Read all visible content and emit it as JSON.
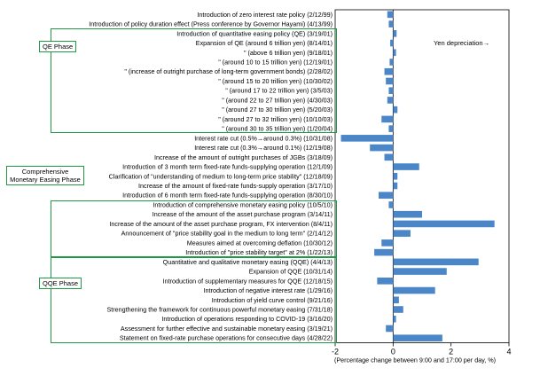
{
  "chart_data": {
    "type": "bar",
    "orientation": "horizontal",
    "categories": [
      "Introduction of zero interest rate policy (2/12/99)",
      "Introduction of policy duration effect (Press conference by Governor Hayami) (4/13/99)",
      "Introduction of quantitative easing policy (QE) (3/19/01)",
      "Expansion of QE (around 6 trillion yen) (8/14/01)",
      "\" (above 6 trillion yen) (9/18/01)",
      "\" (around 10 to 15 trillion yen) (12/19/01)",
      "\" (increase of outright purchase of long-term government bonds) (2/28/02)",
      "\" (around 15 to 20 trillion yen) (10/30/02)",
      "\" (around 17 to 22 trillion yen) (3/5/03)",
      "\" (around 22 to 27 trillion yen) (4/30/03)",
      "\" (around 27 to 30 trillion yen) (5/20/03)",
      "\" (around 27 to 32 trillion yen) (10/10/03)",
      "\" (around 30 to 35 trillion yen) (1/20/04)",
      "Interest rate cut (0.5%→around 0.3%) (10/31/08)",
      "Interest rate cut (0.3%→around 0.1%) (12/19/08)",
      "Increase of the amount of outright purchases of JGBs (3/18/09)",
      "Introduction of 3 month term fixed-rate funds-supplying operation (12/1/09)",
      "Clarification of \"understanding of medium to long-term price stability\" (12/18/09)",
      "Increase of the amount of fixed-rate funds-supply operation (3/17/10)",
      "Introduction of 6 month term fixed-rate funds-supplying operation (8/30/10)",
      "Introduction of comprehensive monetary easing policy (10/5/10)",
      "Increase of the amount of the asset purchase program (3/14/11)",
      "Increase of the amount of the asset purchase program, FX intervention (8/4/11)",
      "Announcement of \"price stability goal in the medium to long term\" (2/14/12)",
      "Measures aimed at overcoming deflation (10/30/12)",
      "Introduction of \"price stability target\" at 2% (1/22/13)",
      "Quantitative and qualitative monetary easing (QQE) (4/4/13)",
      "Expansion of QQE (10/31/14)",
      "Introduction of supplementary measures for QQE (12/18/15)",
      "Introduction of negative interest rate (1/29/16)",
      "Introduction of yield curve control (9/21/16)",
      "Strengthening the framework for continuous powerful monetary easing (7/31/18)",
      "Introduction of operations responding to COVID-19 (3/16/20)",
      "Assessment for further effective and sustainable monetary easing (3/19/21)",
      "Statement on fixed-rate purchase operations for consecutive days (4/28/22)"
    ],
    "values": [
      -0.2,
      -0.15,
      0.12,
      -0.1,
      0.1,
      -0.12,
      -0.3,
      -0.25,
      -0.15,
      -0.2,
      0.15,
      -0.4,
      -0.15,
      -1.8,
      -0.8,
      -0.3,
      0.9,
      0.15,
      0.15,
      -0.5,
      -0.15,
      1.0,
      3.5,
      0.6,
      -0.4,
      -0.65,
      2.95,
      1.85,
      -0.55,
      1.45,
      0.2,
      0.35,
      0.1,
      -0.25,
      1.7
    ],
    "xlim": [
      -2,
      4
    ],
    "xticks": [
      "-2",
      "0",
      "2",
      "4"
    ],
    "xlabel": "(Percentage change between 9:00 and 17:00 per day, %)",
    "annotation": "Yen depreciation→",
    "bar_color": "#4a86c8",
    "phase_color": "#1e9a45",
    "phases": [
      {
        "label": "QE Phase",
        "from": 2,
        "to": 12
      },
      {
        "label": "Comprehensive Monetary Easing Phase",
        "from": 20,
        "to": 25
      },
      {
        "label": "QQE Phase",
        "from": 26,
        "to": 34
      }
    ]
  }
}
